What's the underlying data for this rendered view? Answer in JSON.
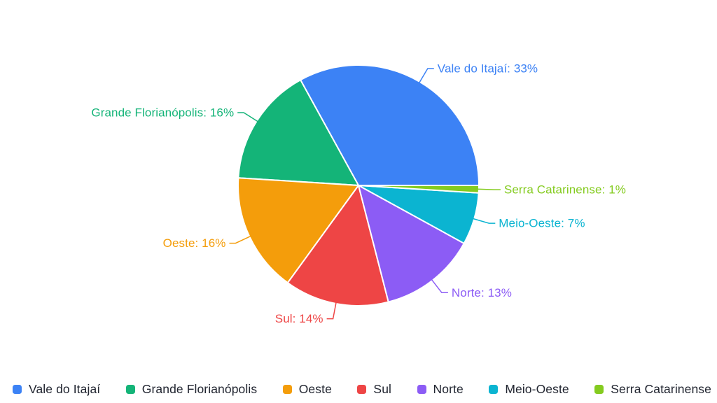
{
  "chart_data": {
    "type": "pie",
    "title": "",
    "unit": "%",
    "start_angle_deg": 0,
    "direction": "counterclockwise",
    "legend_position": "bottom",
    "background_color": "#ffffff",
    "legend_text_color": "#212530",
    "slice_border_color": "#ffffff",
    "slices": [
      {
        "label": "Vale do Itajaí",
        "value": 33,
        "color": "#3C82F5",
        "callout": "Vale do Itajaí: 33%"
      },
      {
        "label": "Grande Florianópolis",
        "value": 16,
        "color": "#14B478",
        "callout": "Grande Florianópolis: 16%"
      },
      {
        "label": "Oeste",
        "value": 16,
        "color": "#F49D0B",
        "callout": "Oeste: 16%"
      },
      {
        "label": "Sul",
        "value": 14,
        "color": "#EE4545",
        "callout": "Sul: 14%"
      },
      {
        "label": "Norte",
        "value": 13,
        "color": "#8C5CF5",
        "callout": "Norte: 13%"
      },
      {
        "label": "Meio-Oeste",
        "value": 7,
        "color": "#0BB4D1",
        "callout": "Meio-Oeste: 7%"
      },
      {
        "label": "Serra Catarinense",
        "value": 1,
        "color": "#84CB1F",
        "callout": "Serra Catarinense: 1%"
      }
    ]
  }
}
